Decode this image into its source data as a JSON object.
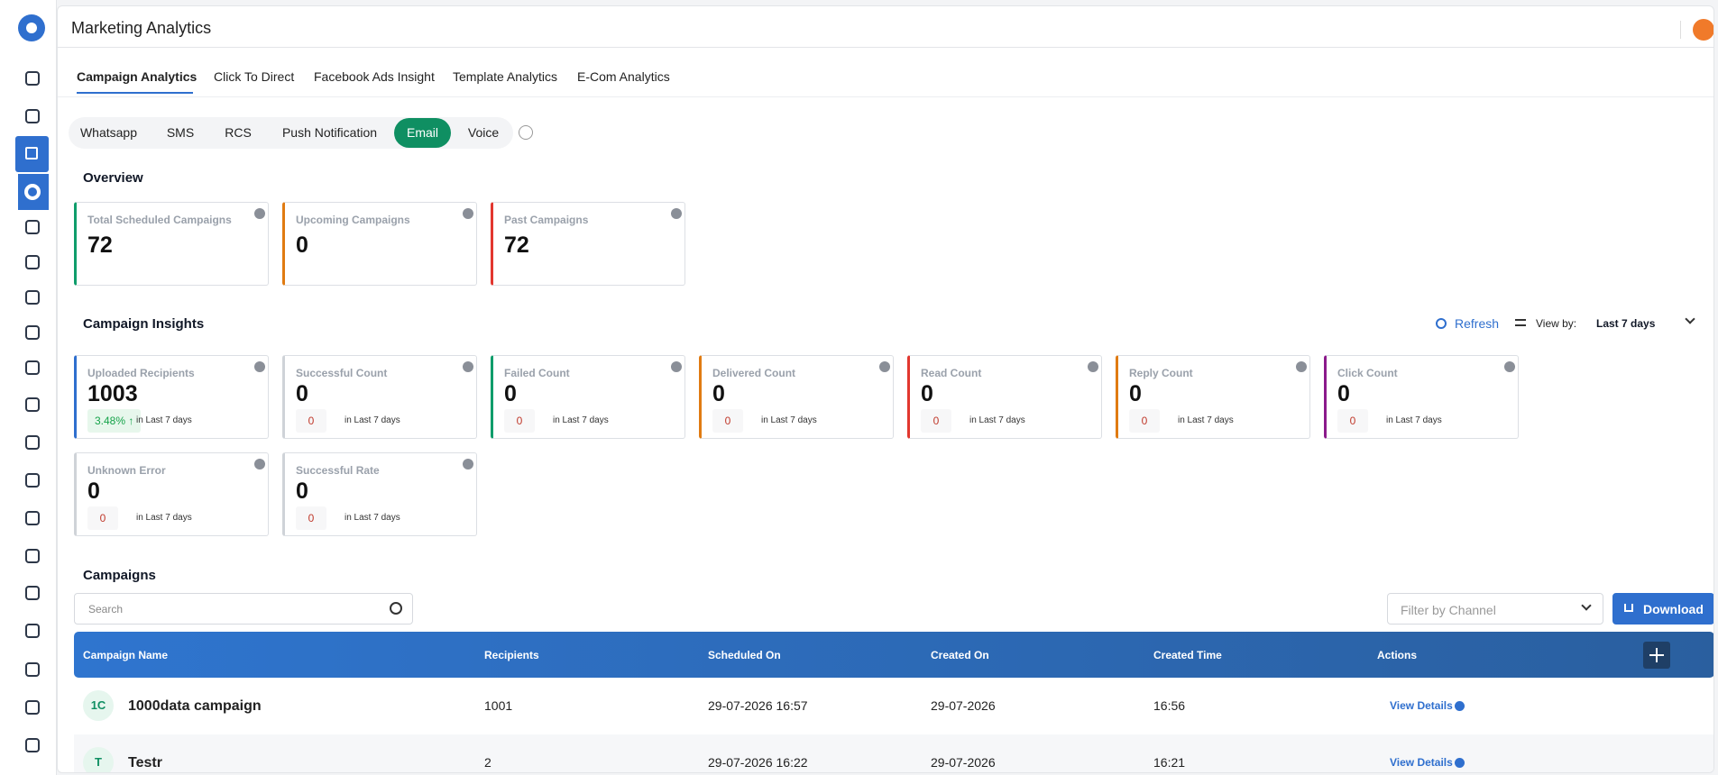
{
  "header": {
    "title": "Marketing Analytics"
  },
  "tabs": {
    "items": [
      "Campaign Analytics",
      "Click To Direct",
      "Facebook Ads Insight",
      "Template Analytics",
      "E-Com Analytics"
    ],
    "active": 0
  },
  "channels": {
    "items": [
      "Whatsapp",
      "SMS",
      "RCS",
      "Push Notification",
      "Email",
      "Voice"
    ],
    "active": 4
  },
  "overview": {
    "title": "Overview",
    "cards": [
      {
        "label": "Total Scheduled Campaigns",
        "value": 72,
        "color": "#0f9d6b"
      },
      {
        "label": "Upcoming Campaigns",
        "value": 0,
        "color": "#e07b12"
      },
      {
        "label": "Past Campaigns",
        "value": 72,
        "color": "#e2372f"
      }
    ]
  },
  "insights": {
    "title": "Campaign Insights",
    "refresh": "Refresh",
    "view_by_label": "View by:",
    "view_by_value": "Last 7 days",
    "cards": [
      {
        "label": "Uploaded Recipients",
        "value": 1003,
        "change": "3.48% ↑",
        "period": "in Last 7 days",
        "color": "#2f6fce",
        "change_color": "#16a34a",
        "change_bg": "#e7f7ec"
      },
      {
        "label": "Successful Count",
        "value": 0,
        "change": "0",
        "period": "in Last 7 days",
        "color": "#cfd3d8",
        "change_color": "#c0392b",
        "change_bg": "#f7f7f8"
      },
      {
        "label": "Failed Count",
        "value": 0,
        "change": "0",
        "period": "in Last 7 days",
        "color": "#0f9d6b",
        "change_color": "#c0392b",
        "change_bg": "#f7f7f8"
      },
      {
        "label": "Delivered Count",
        "value": 0,
        "change": "0",
        "period": "in Last 7 days",
        "color": "#e07b12",
        "change_color": "#c0392b",
        "change_bg": "#f7f7f8"
      },
      {
        "label": "Read Count",
        "value": 0,
        "change": "0",
        "period": "in Last 7 days",
        "color": "#e2372f",
        "change_color": "#c0392b",
        "change_bg": "#f7f7f8"
      },
      {
        "label": "Reply Count",
        "value": 0,
        "change": "0",
        "period": "in Last 7 days",
        "color": "#e07b12",
        "change_color": "#c0392b",
        "change_bg": "#f7f7f8"
      },
      {
        "label": "Click Count",
        "value": 0,
        "change": "0",
        "period": "in Last 7 days",
        "color": "#8b1a8b",
        "change_color": "#c0392b",
        "change_bg": "#f7f7f8"
      },
      {
        "label": "Unknown Error",
        "value": 0,
        "change": "0",
        "period": "in Last 7 days",
        "color": "#cfd3d8",
        "change_color": "#c0392b",
        "change_bg": "#f7f7f8"
      },
      {
        "label": "Successful Rate",
        "value": 0,
        "change": "0",
        "period": "in Last 7 days",
        "color": "#cfd3d8",
        "change_color": "#c0392b",
        "change_bg": "#f7f7f8"
      }
    ]
  },
  "campaigns": {
    "title": "Campaigns",
    "search_placeholder": "Search",
    "filter_placeholder": "Filter by Channel",
    "download": "Download"
  },
  "table": {
    "columns": [
      "Campaign Name",
      "Recipients",
      "Scheduled On",
      "Created On",
      "Created Time",
      "Actions"
    ],
    "rows": [
      {
        "initials": "1C",
        "name": "1000data campaign",
        "recipients": 1001,
        "scheduled_on": "29-07-2026 16:57",
        "created_on": "29-07-2026",
        "created_time": "16:56",
        "action": "View Details"
      },
      {
        "initials": "T",
        "name": "Testr",
        "recipients": 2,
        "scheduled_on": "29-07-2026 16:22",
        "created_on": "29-07-2026",
        "created_time": "16:21",
        "action": "View Details"
      }
    ]
  }
}
